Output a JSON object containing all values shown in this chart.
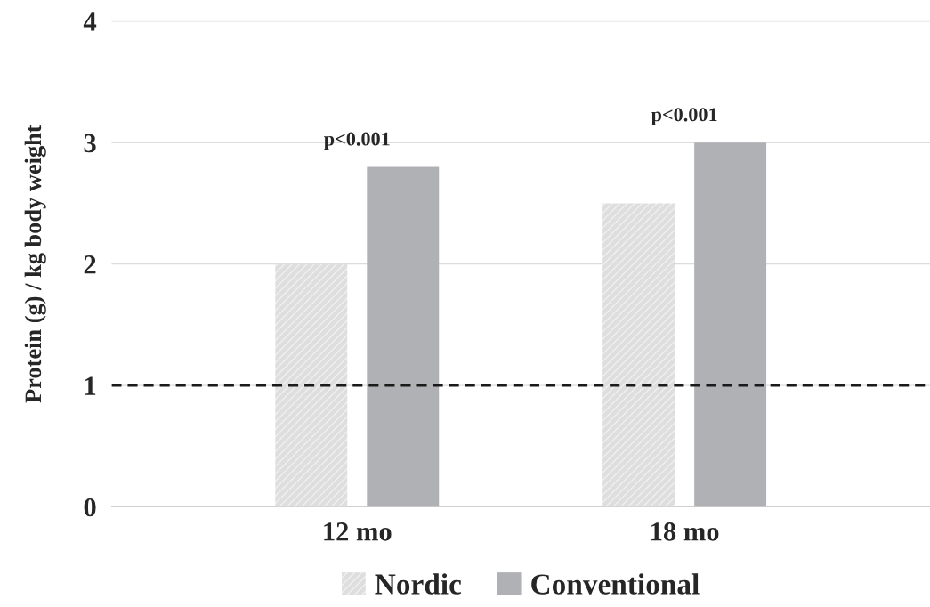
{
  "chart_data": {
    "type": "bar",
    "ylabel": "Protein (g) / kg body weight",
    "categories": [
      "12 mo",
      "18 mo"
    ],
    "series": [
      {
        "name": "Nordic",
        "color": "#dedede",
        "values": [
          2.0,
          2.5
        ]
      },
      {
        "name": "Conventional",
        "color": "#b0b1b5",
        "values": [
          2.8,
          3.0
        ]
      }
    ],
    "ylim": [
      0,
      4
    ],
    "yticks": [
      0,
      1,
      2,
      3,
      4
    ],
    "grid": "y",
    "legend": "bottom",
    "ref_lines": [
      {
        "axis": "y",
        "value": 1,
        "color": "#1a1a1a",
        "line_style": "dashed"
      }
    ],
    "annotations": [
      "p<0.001",
      "p<0.001"
    ]
  }
}
